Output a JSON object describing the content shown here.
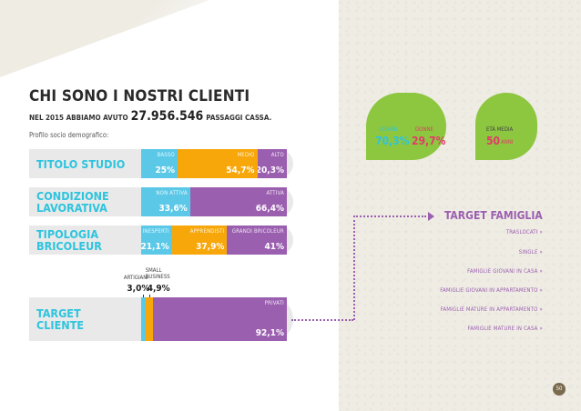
{
  "title": "CHI SONO I NOSTRI CLIENTI",
  "intro": {
    "prefix": "NEL 2015 ABBIAMO AVUTO",
    "number": "27.956.546",
    "suffix": "PASSAGGI CASSA."
  },
  "subtitle": "Profilo socio demografico:",
  "chart_data": {
    "type": "bar",
    "orientation": "horizontal-stacked-100",
    "rows": [
      {
        "label": "TITOLO STUDIO",
        "segments": [
          {
            "name": "BASSO",
            "value": 25.0,
            "display": "25%",
            "color": "#5bc8e8"
          },
          {
            "name": "MEDIO",
            "value": 54.7,
            "display": "54,7%",
            "color": "#f7a70a"
          },
          {
            "name": "ALTO",
            "value": 20.3,
            "display": "20,3%",
            "color": "#9b5fb0"
          }
        ]
      },
      {
        "label": "CONDIZIONE LAVORATIVA",
        "segments": [
          {
            "name": "NON ATTIVA",
            "value": 33.6,
            "display": "33,6%",
            "color": "#5bc8e8"
          },
          {
            "name": "ATTIVA",
            "value": 66.4,
            "display": "66,4%",
            "color": "#9b5fb0"
          }
        ]
      },
      {
        "label": "TIPOLOGIA BRICOLEUR",
        "segments": [
          {
            "name": "INESPERTI",
            "value": 21.1,
            "display": "21,1%",
            "color": "#5bc8e8"
          },
          {
            "name": "APPRENDISTI",
            "value": 37.9,
            "display": "37,9%",
            "color": "#f7a70a"
          },
          {
            "name": "GRANDI BRICOLEUR",
            "value": 41.0,
            "display": "41%",
            "color": "#9b5fb0"
          }
        ]
      },
      {
        "label": "TARGET CLIENTE",
        "segments": [
          {
            "name": "ARTIGIANI",
            "value": 3.0,
            "display": "3,0%",
            "color": "#5bc8e8"
          },
          {
            "name": "SMALL BUSINESS",
            "value": 4.9,
            "display": "4,9%",
            "color": "#f7a70a"
          },
          {
            "name": "PRIVATI",
            "value": 92.1,
            "display": "92,1%",
            "color": "#9b5fb0"
          }
        ]
      }
    ]
  },
  "gender": {
    "uomini_label": "UOMINI",
    "uomini_value": "70,3%",
    "donne_label": "DONNE",
    "donne_value": "29,7%",
    "uomini_color": "#2ec4de",
    "donne_color": "#e23a6a"
  },
  "age": {
    "label": "ETÀ MEDIA",
    "value": "50",
    "unit": "ANNI",
    "color": "#e23a6a"
  },
  "target_famiglia": {
    "title": "TARGET FAMIGLIA",
    "items": [
      "TRASLOCATI »",
      "SINGLE »",
      "FAMIGLIE GIOVANI IN CASA »",
      "FAMIGLIE GIOVANI IN APPARTAMENTO »",
      "FAMIGLIE MATURE IN APPARTAMENTO »",
      "FAMIGLIE MATURE IN CASA »"
    ]
  },
  "page_number": "50",
  "colors": {
    "badge": "#8dc63f",
    "row_label": "#2ec4de",
    "accent": "#9b5fb0"
  }
}
